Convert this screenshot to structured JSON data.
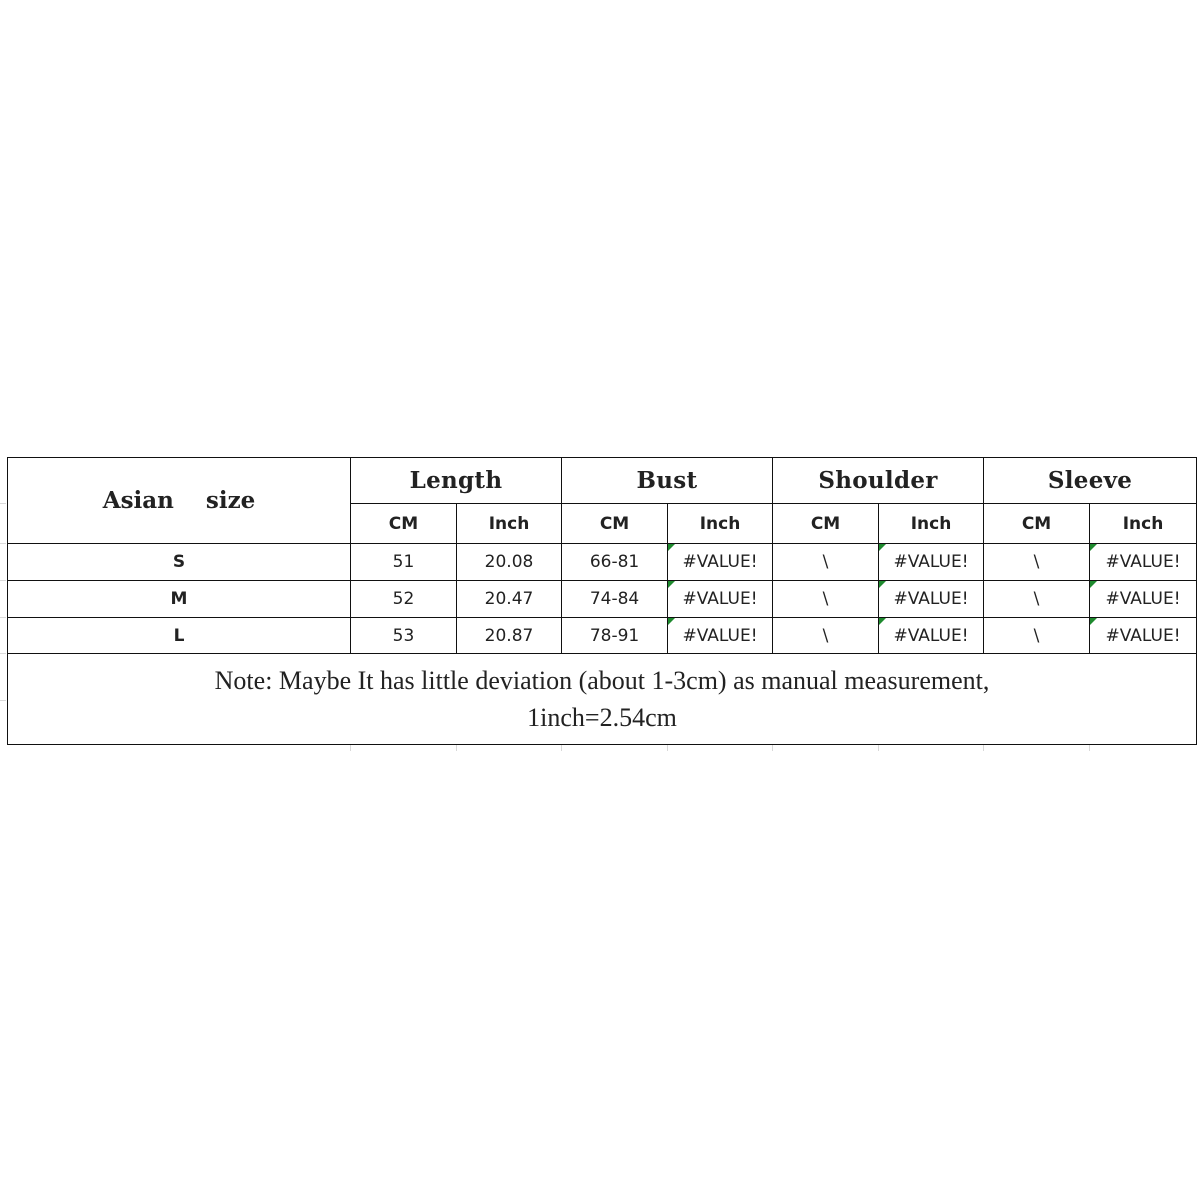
{
  "table": {
    "size_header": "Asian  size",
    "groups": [
      "Length",
      "Bust",
      "Shoulder",
      "Sleeve"
    ],
    "units": [
      "CM",
      "Inch",
      "CM",
      "Inch",
      "CM",
      "Inch",
      "CM",
      "Inch"
    ],
    "rows": [
      {
        "size": "S",
        "values": [
          "51",
          "20.08",
          "66-81",
          "#VALUE!",
          "\\",
          "#VALUE!",
          "\\",
          "#VALUE!"
        ]
      },
      {
        "size": "M",
        "values": [
          "52",
          "20.47",
          "74-84",
          "#VALUE!",
          "\\",
          "#VALUE!",
          "\\",
          "#VALUE!"
        ]
      },
      {
        "size": "L",
        "values": [
          "53",
          "20.87",
          "78-91",
          "#VALUE!",
          "\\",
          "#VALUE!",
          "\\",
          "#VALUE!"
        ]
      }
    ],
    "note_line1": "Note: Maybe It has little deviation (about 1-3cm) as manual measurement,",
    "note_line2": "1inch=2.54cm",
    "error_marker_color": "#1e8a2e"
  }
}
